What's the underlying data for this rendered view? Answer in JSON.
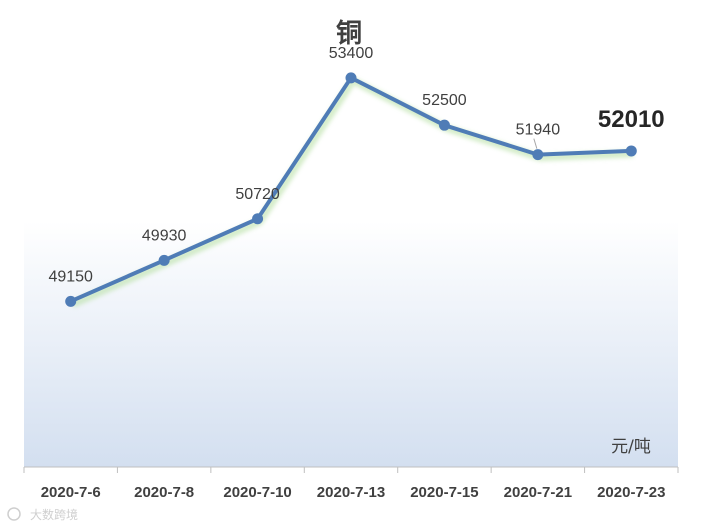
{
  "chart_data": {
    "type": "line",
    "title": "铜",
    "unit_label": "元/吨",
    "categories": [
      "2020-7-6",
      "2020-7-8",
      "2020-7-10",
      "2020-7-13",
      "2020-7-15",
      "2020-7-21",
      "2020-7-23"
    ],
    "series": [
      {
        "values": [
          49150,
          49930,
          50720,
          53400,
          52500,
          51940,
          52010
        ],
        "color": "#4f7cb6"
      }
    ],
    "data_labels": [
      "49150",
      "49930",
      "50720",
      "53400",
      "52500",
      "51940",
      "52010"
    ],
    "highlight_index": 6,
    "ylim": [
      46000,
      54500
    ],
    "grid": false,
    "legend": "none"
  },
  "watermark": "大数跨境"
}
